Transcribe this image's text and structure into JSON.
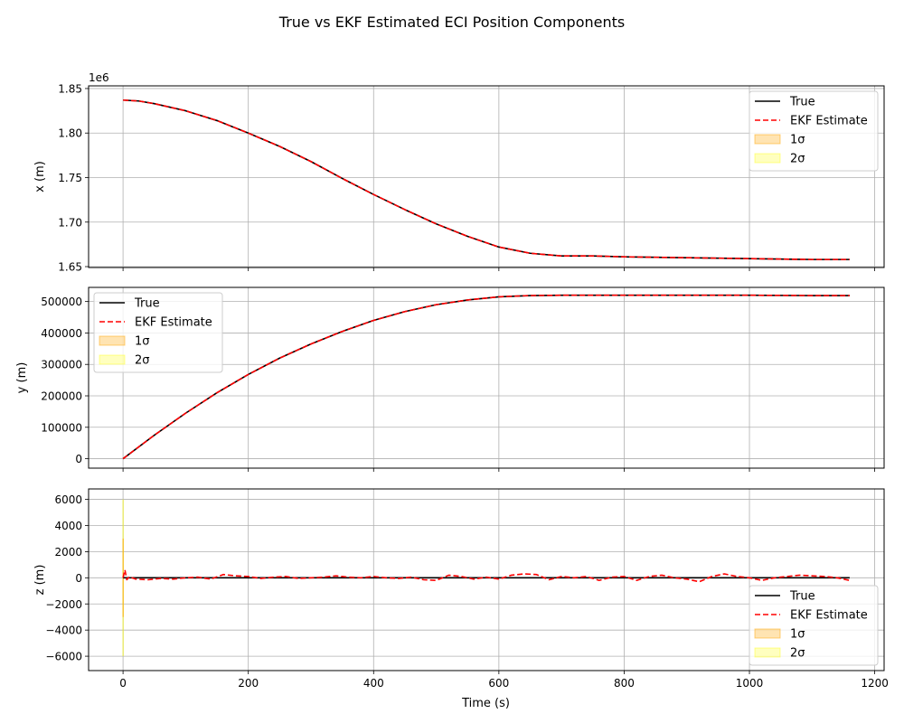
{
  "figure": {
    "title": "True vs EKF Estimated ECI Position Components",
    "xlabel": "Time (s)"
  },
  "colors": {
    "true": "#000000",
    "estimate": "#ff0000",
    "sigma1": "#ffa500",
    "sigma2": "#ffff00",
    "grid": "#b0b0b0"
  },
  "chart_data": [
    {
      "type": "line",
      "ylabel": "x (m)",
      "offset_label": "1e6",
      "xlim": [
        -55,
        1215
      ],
      "ylim": [
        1649000,
        1853000
      ],
      "xticks": [
        0,
        200,
        400,
        600,
        800,
        1000,
        1200
      ],
      "yticks": [
        1650000,
        1700000,
        1750000,
        1800000,
        1850000
      ],
      "ytick_labels": [
        "1.65",
        "1.70",
        "1.75",
        "1.80",
        "1.85"
      ],
      "legend": {
        "placement": "upper right",
        "entries": [
          "True",
          "EKF Estimate",
          "1σ",
          "2σ"
        ]
      },
      "grid": true,
      "series": [
        {
          "name": "True",
          "x": [
            0,
            25,
            50,
            100,
            150,
            200,
            250,
            300,
            350,
            400,
            450,
            500,
            550,
            600,
            650,
            700,
            750,
            800,
            900,
            1000,
            1100,
            1160
          ],
          "values": [
            1837000,
            1836000,
            1833000,
            1825000,
            1814000,
            1800000,
            1785000,
            1768000,
            1749000,
            1731000,
            1714000,
            1698000,
            1684000,
            1672000,
            1665000,
            1662000,
            1662000,
            1661000,
            1660000,
            1659000,
            1658000,
            1658000
          ]
        },
        {
          "name": "EKF Estimate",
          "x": [
            0,
            25,
            50,
            100,
            150,
            200,
            250,
            300,
            350,
            400,
            450,
            500,
            550,
            600,
            650,
            700,
            750,
            800,
            900,
            1000,
            1100,
            1160
          ],
          "values": [
            1837000,
            1836000,
            1833000,
            1825000,
            1814000,
            1800000,
            1785000,
            1768000,
            1749000,
            1731000,
            1714000,
            1698000,
            1684000,
            1672000,
            1665000,
            1662000,
            1662000,
            1661000,
            1660000,
            1659000,
            1658000,
            1658000
          ]
        }
      ]
    },
    {
      "type": "line",
      "ylabel": "y (m)",
      "offset_label": "",
      "xlim": [
        -55,
        1215
      ],
      "ylim": [
        -30000,
        545000
      ],
      "xticks": [
        0,
        200,
        400,
        600,
        800,
        1000,
        1200
      ],
      "yticks": [
        0,
        100000,
        200000,
        300000,
        400000,
        500000
      ],
      "ytick_labels": [
        "0",
        "100000",
        "200000",
        "300000",
        "400000",
        "500000"
      ],
      "legend": {
        "placement": "upper left",
        "entries": [
          "True",
          "EKF Estimate",
          "1σ",
          "2σ"
        ]
      },
      "grid": true,
      "series": [
        {
          "name": "True",
          "x": [
            0,
            50,
            100,
            150,
            200,
            250,
            300,
            350,
            400,
            450,
            500,
            550,
            600,
            650,
            700,
            750,
            800,
            900,
            1000,
            1100,
            1160
          ],
          "values": [
            0,
            75000,
            145000,
            210000,
            268000,
            320000,
            365000,
            405000,
            440000,
            468000,
            490000,
            505000,
            515000,
            519000,
            520000,
            520000,
            520000,
            520000,
            520000,
            519000,
            519000
          ]
        },
        {
          "name": "EKF Estimate",
          "x": [
            0,
            50,
            100,
            150,
            200,
            250,
            300,
            350,
            400,
            450,
            500,
            550,
            600,
            650,
            700,
            750,
            800,
            900,
            1000,
            1100,
            1160
          ],
          "values": [
            0,
            75000,
            145000,
            210000,
            268000,
            320000,
            365000,
            405000,
            440000,
            468000,
            490000,
            505000,
            515000,
            519000,
            520000,
            520000,
            520000,
            520000,
            520000,
            519000,
            519000
          ]
        }
      ]
    },
    {
      "type": "line",
      "ylabel": "z (m)",
      "offset_label": "",
      "xlim": [
        -55,
        1215
      ],
      "ylim": [
        -7100,
        6800
      ],
      "xticks": [
        0,
        200,
        400,
        600,
        800,
        1000,
        1200
      ],
      "yticks": [
        -6000,
        -4000,
        -2000,
        0,
        2000,
        4000,
        6000
      ],
      "ytick_labels": [
        "−6000",
        "−4000",
        "−2000",
        "0",
        "2000",
        "4000",
        "6000"
      ],
      "legend": {
        "placement": "lower right",
        "entries": [
          "True",
          "EKF Estimate",
          "1σ",
          "2σ"
        ]
      },
      "grid": true,
      "sigma_spike": {
        "x": [
          0,
          2
        ],
        "sigma1": 3000,
        "sigma2": 6000
      },
      "series": [
        {
          "name": "True",
          "x": [
            0,
            1160
          ],
          "values": [
            0,
            0
          ]
        },
        {
          "name": "EKF Estimate",
          "x": [
            0,
            3,
            6,
            10,
            20,
            40,
            60,
            80,
            100,
            120,
            140,
            160,
            180,
            200,
            220,
            240,
            260,
            280,
            300,
            320,
            340,
            360,
            380,
            400,
            420,
            440,
            460,
            480,
            500,
            520,
            540,
            560,
            580,
            600,
            620,
            640,
            660,
            680,
            700,
            720,
            740,
            760,
            780,
            800,
            820,
            840,
            860,
            880,
            900,
            920,
            940,
            960,
            980,
            1000,
            1020,
            1040,
            1060,
            1080,
            1100,
            1120,
            1140,
            1160
          ],
          "values": [
            0,
            600,
            -150,
            80,
            -100,
            -150,
            -50,
            -100,
            0,
            50,
            -100,
            250,
            150,
            100,
            -50,
            50,
            100,
            -50,
            0,
            50,
            150,
            50,
            0,
            100,
            0,
            -50,
            50,
            -150,
            -200,
            200,
            100,
            -100,
            50,
            -100,
            200,
            300,
            250,
            -150,
            100,
            0,
            100,
            -200,
            50,
            100,
            -200,
            100,
            200,
            0,
            -100,
            -300,
            100,
            300,
            100,
            0,
            -200,
            0,
            100,
            200,
            150,
            100,
            0,
            -200
          ]
        }
      ]
    }
  ]
}
